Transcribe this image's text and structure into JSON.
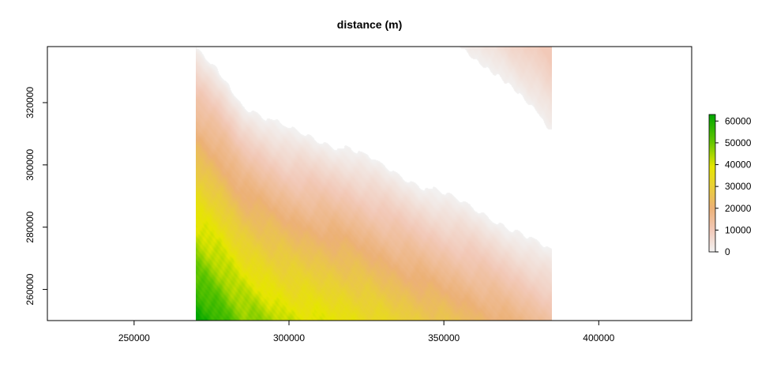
{
  "chart_data": {
    "type": "heatmap",
    "title": "distance (m)",
    "xlabel": "",
    "ylabel": "",
    "xlim": [
      222000,
      430000
    ],
    "ylim": [
      250000,
      338000
    ],
    "raster_extent": {
      "x": [
        270000,
        385000
      ],
      "y": [
        250000,
        338000
      ]
    },
    "x_ticks": [
      250000,
      300000,
      350000,
      400000
    ],
    "y_ticks": [
      260000,
      280000,
      300000,
      320000
    ],
    "x_tick_labels": [
      "250000",
      "300000",
      "350000",
      "400000"
    ],
    "y_tick_labels": [
      "260000",
      "280000",
      "300000",
      "320000"
    ],
    "coast_front": [
      [
        270000,
        338000
      ],
      [
        278000,
        330000
      ],
      [
        285000,
        320000
      ],
      [
        300000,
        311000
      ],
      [
        320000,
        305000
      ],
      [
        340000,
        295000
      ],
      [
        360000,
        286000
      ],
      [
        375000,
        278000
      ],
      [
        385000,
        272000
      ]
    ],
    "ne_region": {
      "x_start": 355000,
      "corner_value_m": 10000,
      "edge": [
        [
          355000,
          338000
        ],
        [
          362000,
          333000
        ],
        [
          370000,
          326000
        ],
        [
          380000,
          318000
        ],
        [
          385000,
          311000
        ]
      ]
    },
    "max_distance_at_corner_m": 62000,
    "legend": {
      "min": 0,
      "max": 63000,
      "ticks": [
        0,
        10000,
        20000,
        30000,
        40000,
        50000,
        60000
      ],
      "tick_labels": [
        "0",
        "10000",
        "20000",
        "30000",
        "40000",
        "50000",
        "60000"
      ],
      "placement": "right"
    },
    "colormap": [
      "#f2f2f2",
      "#f2c9b8",
      "#ecb176",
      "#e9d036",
      "#e6e600",
      "#63c600",
      "#00a600"
    ],
    "na_color": "#ffffff",
    "grid": false
  }
}
